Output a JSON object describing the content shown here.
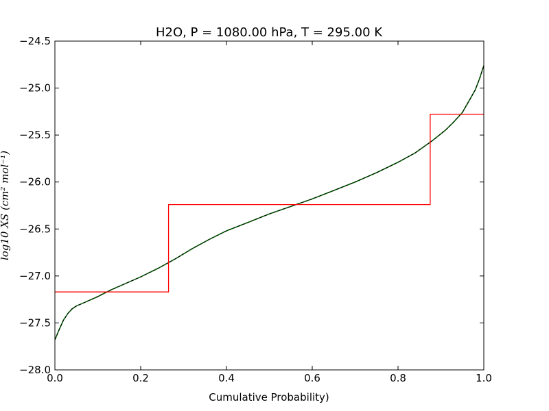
{
  "chart_data": {
    "type": "line",
    "title": "H2O, P = 1080.00 hPa, T = 295.00 K",
    "xlabel": "Cumulative Probability)",
    "ylabel": "log10 XS (cm² mol⁻¹)",
    "xlim": [
      0.0,
      1.0
    ],
    "ylim": [
      -28.0,
      -24.5
    ],
    "x_ticks": [
      "0.0",
      "0.2",
      "0.4",
      "0.6",
      "0.8",
      "1.0"
    ],
    "y_ticks": [
      "−24.5",
      "−25.0",
      "−25.5",
      "−26.0",
      "−26.5",
      "−27.0",
      "−27.5",
      "−28.0"
    ],
    "grid": false,
    "series": [
      {
        "color": "#006400",
        "x": [
          0.0,
          0.01,
          0.02,
          0.03,
          0.04,
          0.05,
          0.07,
          0.1,
          0.13,
          0.16,
          0.2,
          0.24,
          0.28,
          0.32,
          0.36,
          0.4,
          0.45,
          0.5,
          0.55,
          0.6,
          0.65,
          0.7,
          0.75,
          0.8,
          0.84,
          0.88,
          0.91,
          0.93,
          0.95,
          0.96,
          0.97,
          0.98,
          0.99,
          1.0
        ],
        "y": [
          -27.68,
          -27.57,
          -27.47,
          -27.4,
          -27.35,
          -27.32,
          -27.28,
          -27.22,
          -27.15,
          -27.09,
          -27.01,
          -26.92,
          -26.82,
          -26.71,
          -26.61,
          -26.52,
          -26.43,
          -26.34,
          -26.26,
          -26.18,
          -26.09,
          -26.0,
          -25.9,
          -25.79,
          -25.69,
          -25.56,
          -25.45,
          -25.36,
          -25.26,
          -25.18,
          -25.1,
          -25.02,
          -24.9,
          -24.76
        ]
      },
      {
        "color": "#ff0000",
        "type": "step",
        "x": [
          0.0,
          0.265,
          0.265,
          0.875,
          0.875,
          1.0
        ],
        "y": [
          -27.17,
          -27.17,
          -26.24,
          -26.24,
          -25.28,
          -25.28
        ]
      }
    ]
  }
}
